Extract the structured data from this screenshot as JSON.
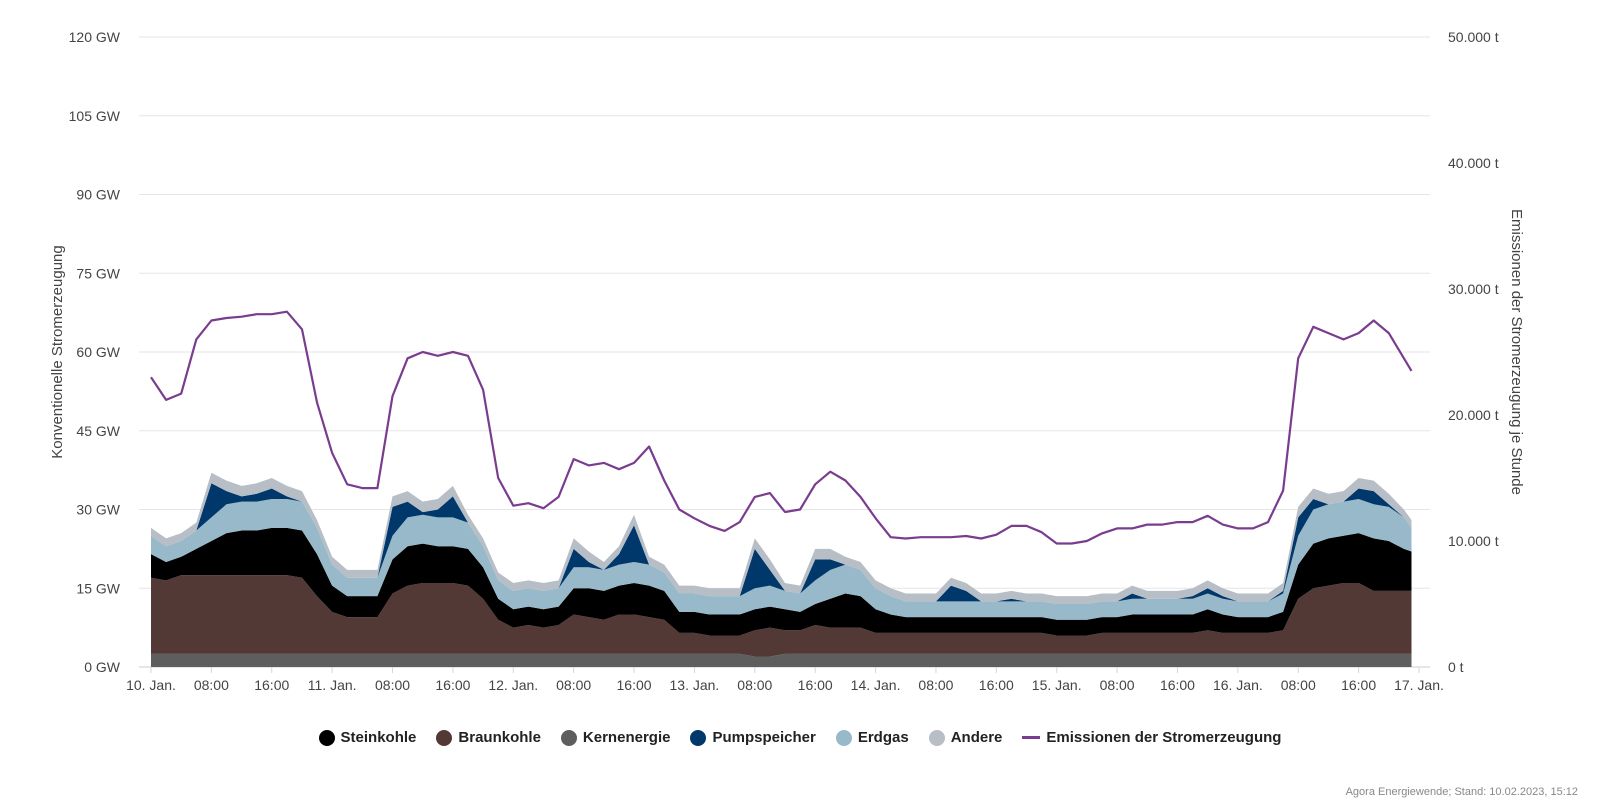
{
  "chart_data": {
    "type": "area",
    "title": "",
    "ylabel_left": "Konventionelle Stromerzeugung",
    "ylabel_right": "Emissionen der Stromerzeugung je Stunde",
    "left_ticks": [
      "0 GW",
      "15 GW",
      "30 GW",
      "45 GW",
      "60 GW",
      "75 GW",
      "90 GW",
      "105 GW",
      "120 GW"
    ],
    "left_ylim": [
      0,
      120
    ],
    "right_ticks": [
      "0 t",
      "10.000 t",
      "20.000 t",
      "30.000 t",
      "40.000 t",
      "50.000 t"
    ],
    "right_ylim": [
      0,
      50000
    ],
    "x_range_hours": [
      0,
      168
    ],
    "x_ticks": [
      {
        "hour": 0,
        "label": "10. Jan."
      },
      {
        "hour": 8,
        "label": "08:00"
      },
      {
        "hour": 16,
        "label": "16:00"
      },
      {
        "hour": 24,
        "label": "11. Jan."
      },
      {
        "hour": 32,
        "label": "08:00"
      },
      {
        "hour": 40,
        "label": "16:00"
      },
      {
        "hour": 48,
        "label": "12. Jan."
      },
      {
        "hour": 56,
        "label": "08:00"
      },
      {
        "hour": 64,
        "label": "16:00"
      },
      {
        "hour": 72,
        "label": "13. Jan."
      },
      {
        "hour": 80,
        "label": "08:00"
      },
      {
        "hour": 88,
        "label": "16:00"
      },
      {
        "hour": 96,
        "label": "14. Jan."
      },
      {
        "hour": 104,
        "label": "08:00"
      },
      {
        "hour": 112,
        "label": "16:00"
      },
      {
        "hour": 120,
        "label": "15. Jan."
      },
      {
        "hour": 128,
        "label": "08:00"
      },
      {
        "hour": 136,
        "label": "16:00"
      },
      {
        "hour": 144,
        "label": "16. Jan."
      },
      {
        "hour": 152,
        "label": "08:00"
      },
      {
        "hour": 160,
        "label": "16:00"
      },
      {
        "hour": 168,
        "label": "17. Jan."
      }
    ],
    "hours": [
      0,
      2,
      4,
      6,
      8,
      10,
      12,
      14,
      16,
      18,
      20,
      22,
      24,
      26,
      28,
      30,
      32,
      34,
      36,
      38,
      40,
      42,
      44,
      46,
      48,
      50,
      52,
      54,
      56,
      58,
      60,
      62,
      64,
      66,
      68,
      70,
      72,
      74,
      76,
      78,
      80,
      82,
      84,
      86,
      88,
      90,
      92,
      94,
      96,
      98,
      100,
      102,
      104,
      106,
      108,
      110,
      112,
      114,
      116,
      118,
      120,
      122,
      124,
      126,
      128,
      130,
      132,
      134,
      136,
      138,
      140,
      142,
      144,
      146,
      148,
      150,
      152,
      154,
      156,
      158,
      160,
      162,
      164,
      166,
      167
    ],
    "series": [
      {
        "name": "Kernenergie",
        "color": "#5e5e5e",
        "values": [
          2.5,
          2.5,
          2.5,
          2.5,
          2.5,
          2.5,
          2.5,
          2.5,
          2.5,
          2.5,
          2.5,
          2.5,
          2.5,
          2.5,
          2.5,
          2.5,
          2.5,
          2.5,
          2.5,
          2.5,
          2.5,
          2.5,
          2.5,
          2.5,
          2.5,
          2.5,
          2.5,
          2.5,
          2.5,
          2.5,
          2.5,
          2.5,
          2.5,
          2.5,
          2.5,
          2.5,
          2.5,
          2.5,
          2.5,
          2.5,
          2.0,
          2.0,
          2.5,
          2.5,
          2.5,
          2.5,
          2.5,
          2.5,
          2.5,
          2.5,
          2.5,
          2.5,
          2.5,
          2.5,
          2.5,
          2.5,
          2.5,
          2.5,
          2.5,
          2.5,
          2.5,
          2.5,
          2.5,
          2.5,
          2.5,
          2.5,
          2.5,
          2.5,
          2.5,
          2.5,
          2.5,
          2.5,
          2.5,
          2.5,
          2.5,
          2.5,
          2.5,
          2.5,
          2.5,
          2.5,
          2.5,
          2.5,
          2.5,
          2.5,
          2.5
        ]
      },
      {
        "name": "Braunkohle",
        "color": "#523936",
        "values": [
          14.5,
          14.0,
          15.0,
          15.0,
          15.0,
          15.0,
          15.0,
          15.0,
          15.0,
          15.0,
          14.5,
          11.0,
          8.0,
          7.0,
          7.0,
          7.0,
          11.5,
          13.0,
          13.5,
          13.5,
          13.5,
          13.0,
          10.5,
          6.5,
          5.0,
          5.5,
          5.0,
          5.5,
          7.5,
          7.0,
          6.5,
          7.5,
          7.5,
          7.0,
          6.5,
          4.0,
          4.0,
          3.5,
          3.5,
          3.5,
          5.0,
          5.5,
          4.5,
          4.5,
          5.5,
          5.0,
          5.0,
          5.0,
          4.0,
          4.0,
          4.0,
          4.0,
          4.0,
          4.0,
          4.0,
          4.0,
          4.0,
          4.0,
          4.0,
          4.0,
          3.5,
          3.5,
          3.5,
          4.0,
          4.0,
          4.0,
          4.0,
          4.0,
          4.0,
          4.0,
          4.5,
          4.0,
          4.0,
          4.0,
          4.0,
          4.5,
          10.5,
          12.5,
          13.0,
          13.5,
          13.5,
          12.0,
          12.0,
          12.0,
          12.0
        ]
      },
      {
        "name": "Steinkohle",
        "color": "#000000",
        "values": [
          4.5,
          3.5,
          3.5,
          5.0,
          6.5,
          8.0,
          8.5,
          8.5,
          9.0,
          9.0,
          9.0,
          8.0,
          5.0,
          4.0,
          4.0,
          4.0,
          6.5,
          7.5,
          7.5,
          7.0,
          7.0,
          7.0,
          6.0,
          4.0,
          3.5,
          3.5,
          3.5,
          3.5,
          5.0,
          5.5,
          5.5,
          5.5,
          6.0,
          6.0,
          5.5,
          4.0,
          4.0,
          4.0,
          4.0,
          4.0,
          4.0,
          4.0,
          4.0,
          3.5,
          4.0,
          5.5,
          6.5,
          6.0,
          4.5,
          3.5,
          3.0,
          3.0,
          3.0,
          3.0,
          3.0,
          3.0,
          3.0,
          3.0,
          3.0,
          3.0,
          3.0,
          3.0,
          3.0,
          3.0,
          3.0,
          3.5,
          3.5,
          3.5,
          3.5,
          3.5,
          4.0,
          3.5,
          3.0,
          3.0,
          3.0,
          3.5,
          6.5,
          8.5,
          9.0,
          9.0,
          9.5,
          10.0,
          9.5,
          8.0,
          7.5
        ]
      },
      {
        "name": "Erdgas",
        "color": "#98b9c9",
        "values": [
          3.5,
          3.0,
          3.0,
          3.5,
          4.5,
          5.5,
          5.5,
          5.5,
          5.5,
          5.5,
          5.5,
          5.0,
          4.0,
          3.5,
          3.5,
          3.5,
          4.5,
          5.5,
          5.5,
          5.5,
          5.5,
          5.0,
          4.0,
          3.5,
          3.5,
          3.5,
          3.5,
          3.5,
          4.0,
          4.0,
          4.0,
          4.0,
          4.0,
          4.0,
          3.5,
          3.5,
          3.5,
          3.5,
          3.5,
          3.5,
          4.0,
          4.0,
          3.5,
          3.5,
          4.5,
          5.5,
          5.5,
          5.0,
          4.0,
          3.5,
          3.0,
          3.0,
          3.0,
          3.0,
          3.0,
          3.0,
          3.0,
          3.0,
          3.0,
          3.0,
          3.0,
          3.0,
          3.0,
          3.0,
          3.0,
          3.0,
          3.0,
          3.0,
          3.0,
          3.0,
          3.0,
          3.0,
          3.0,
          3.0,
          3.0,
          3.5,
          5.5,
          6.5,
          6.5,
          6.5,
          6.5,
          6.5,
          6.5,
          6.0,
          4.5
        ]
      },
      {
        "name": "Pumpspeicher",
        "color": "#00386b",
        "values": [
          0,
          0,
          0,
          0,
          6.5,
          2.5,
          1.0,
          1.5,
          2.0,
          0.5,
          0,
          0,
          0,
          0,
          0,
          0,
          5.5,
          3.0,
          0.5,
          1.5,
          4.0,
          0,
          0,
          0,
          0,
          0,
          0,
          0,
          3.5,
          1.0,
          0,
          2.0,
          7.0,
          0,
          0,
          0,
          0,
          0,
          0,
          0,
          7.5,
          3.0,
          0,
          0,
          4.0,
          2.0,
          0,
          0,
          0,
          0,
          0,
          0,
          0,
          3.0,
          2.0,
          0,
          0,
          0.5,
          0,
          0,
          0,
          0,
          0,
          0,
          0,
          1.0,
          0,
          0,
          0,
          0.5,
          1.0,
          0.5,
          0,
          0,
          0,
          0.5,
          3.5,
          2.0,
          0,
          0,
          2.0,
          2.5,
          0.5,
          0,
          0
        ]
      },
      {
        "name": "Andere",
        "color": "#b7bec6",
        "values": [
          1.5,
          1.5,
          1.5,
          1.5,
          2.0,
          2.0,
          2.0,
          2.0,
          2.0,
          2.0,
          2.0,
          1.5,
          1.5,
          1.5,
          1.5,
          1.5,
          2.0,
          2.0,
          2.0,
          2.0,
          2.0,
          1.5,
          1.5,
          1.5,
          1.5,
          1.5,
          1.5,
          1.5,
          2.0,
          2.0,
          1.5,
          1.5,
          2.0,
          1.5,
          1.5,
          1.5,
          1.5,
          1.5,
          1.5,
          1.5,
          2.0,
          2.0,
          1.5,
          1.5,
          2.0,
          2.0,
          1.5,
          1.5,
          1.5,
          1.5,
          1.5,
          1.5,
          1.5,
          1.5,
          1.5,
          1.5,
          1.5,
          1.5,
          1.5,
          1.5,
          1.5,
          1.5,
          1.5,
          1.5,
          1.5,
          1.5,
          1.5,
          1.5,
          1.5,
          1.5,
          1.5,
          1.5,
          1.5,
          1.5,
          1.5,
          1.5,
          2.0,
          2.0,
          2.0,
          2.0,
          2.0,
          2.0,
          2.0,
          1.5,
          1.5
        ]
      }
    ],
    "emissions": {
      "name": "Emissionen der Stromerzeugung",
      "color": "#7a3c8f",
      "axis": "right",
      "values": [
        23000,
        21200,
        21700,
        26000,
        27500,
        27700,
        27800,
        28000,
        28000,
        28200,
        26800,
        21000,
        17000,
        14500,
        14200,
        14200,
        21500,
        24500,
        25000,
        24700,
        25000,
        24700,
        22000,
        15000,
        12800,
        13000,
        12600,
        13500,
        16500,
        16000,
        16200,
        15700,
        16200,
        17500,
        14800,
        12500,
        11800,
        11200,
        10800,
        11500,
        13500,
        13800,
        12300,
        12500,
        14500,
        15500,
        14800,
        13500,
        11800,
        10300,
        10200,
        10300,
        10300,
        10300,
        10400,
        10200,
        10500,
        11200,
        11200,
        10700,
        9800,
        9800,
        10000,
        10600,
        11000,
        11000,
        11300,
        11300,
        11500,
        11500,
        12000,
        11300,
        11000,
        11000,
        11500,
        14000,
        24500,
        27000,
        26500,
        26000,
        26500,
        27500,
        26500,
        24500,
        23500
      ]
    },
    "legend": [
      "Steinkohle",
      "Braunkohle",
      "Kernenergie",
      "Pumpspeicher",
      "Erdgas",
      "Andere",
      "Emissionen der Stromerzeugung"
    ]
  },
  "legend": {
    "steinkohle": "Steinkohle",
    "braunkohle": "Braunkohle",
    "kernenergie": "Kernenergie",
    "pumpspeicher": "Pumpspeicher",
    "erdgas": "Erdgas",
    "andere": "Andere",
    "emissionen": "Emissionen der Stromerzeugung"
  },
  "colors": {
    "steinkohle": "#000000",
    "braunkohle": "#523936",
    "kernenergie": "#5e5e5e",
    "pumpspeicher": "#00386b",
    "erdgas": "#98b9c9",
    "andere": "#b7bec6",
    "emissionen": "#7a3c8f"
  },
  "credit": "Agora Energiewende; Stand: 10.02.2023, 15:12"
}
